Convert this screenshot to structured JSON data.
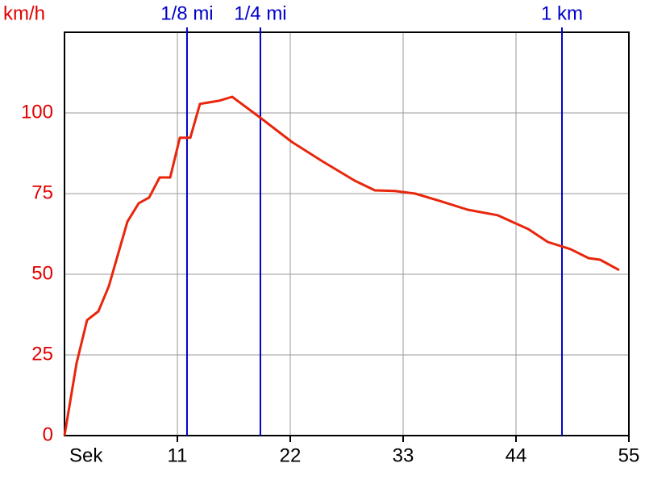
{
  "chart_data": {
    "type": "line",
    "x_label": "Sek",
    "y_label": "km/h",
    "x": [
      0,
      1.18,
      2.2,
      3.3,
      4.32,
      6.13,
      7.23,
      8.25,
      9.27,
      10.3,
      11.24,
      12.26,
      13.2,
      15.09,
      16.34,
      19.09,
      22.16,
      25.14,
      28.29,
      30.25,
      32.2,
      34.18,
      36.5,
      39.3,
      42.2,
      45.2,
      47.1,
      49.3,
      51.07,
      52.2,
      54.05
    ],
    "series": [
      {
        "color": "#e8260c",
        "values": [
          0,
          22.5,
          35.8,
          38.5,
          46.3,
          66.3,
          72,
          73.8,
          80,
          80,
          92.3,
          92.3,
          102.8,
          103.8,
          105,
          98.5,
          91,
          85,
          79,
          76,
          75.8,
          75,
          72.8,
          70,
          68.3,
          64,
          60,
          57.8,
          55,
          54.5,
          51.3
        ]
      }
    ],
    "xlim": [
      0,
      55
    ],
    "ylim": [
      0,
      125
    ],
    "xticks": [
      11,
      22,
      33,
      44,
      55
    ],
    "yticks": [
      0,
      25,
      50,
      75,
      100
    ],
    "grid": true,
    "markers": [
      {
        "label": "1/8 mi",
        "x": 11.94,
        "color": "#0000c8"
      },
      {
        "label": "1/4 mi",
        "x": 19.09,
        "color": "#0000c8"
      },
      {
        "label": "1 km",
        "x": 48.48,
        "color": "#0000c8"
      }
    ]
  }
}
